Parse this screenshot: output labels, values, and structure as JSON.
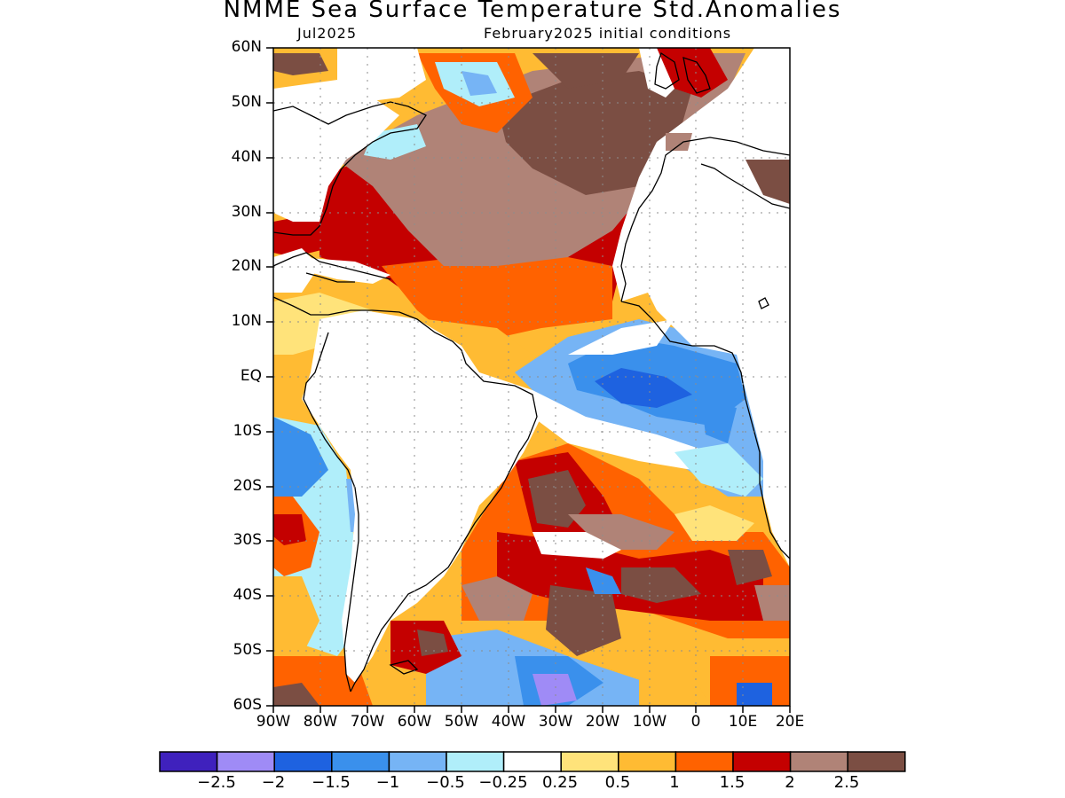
{
  "title": "NMME Sea Surface Temperature Std.Anomalies",
  "target_month": "Jul2025",
  "initial_conditions": "February2025 initial conditions",
  "lat_ticks": [
    "60N",
    "50N",
    "40N",
    "30N",
    "20N",
    "10N",
    "EQ",
    "10S",
    "20S",
    "30S",
    "40S",
    "50S",
    "60S"
  ],
  "lon_ticks": [
    "90W",
    "80W",
    "70W",
    "60W",
    "50W",
    "40W",
    "30W",
    "20W",
    "10W",
    "0",
    "10E",
    "20E"
  ],
  "colorbar": {
    "colors": [
      "#3f21bd",
      "#9f8bf6",
      "#1e62e0",
      "#3a90ec",
      "#76b4f5",
      "#b0eefa",
      "#ffffff",
      "#ffe37a",
      "#ffbb33",
      "#ff6200",
      "#c40000",
      "#b08377",
      "#7b4e43"
    ],
    "labels": [
      "-2.5",
      "-2",
      "-1.5",
      "-1",
      "-0.5",
      "-0.25",
      "0.25",
      "0.5",
      "1",
      "1.5",
      "2",
      "2.5"
    ]
  }
}
